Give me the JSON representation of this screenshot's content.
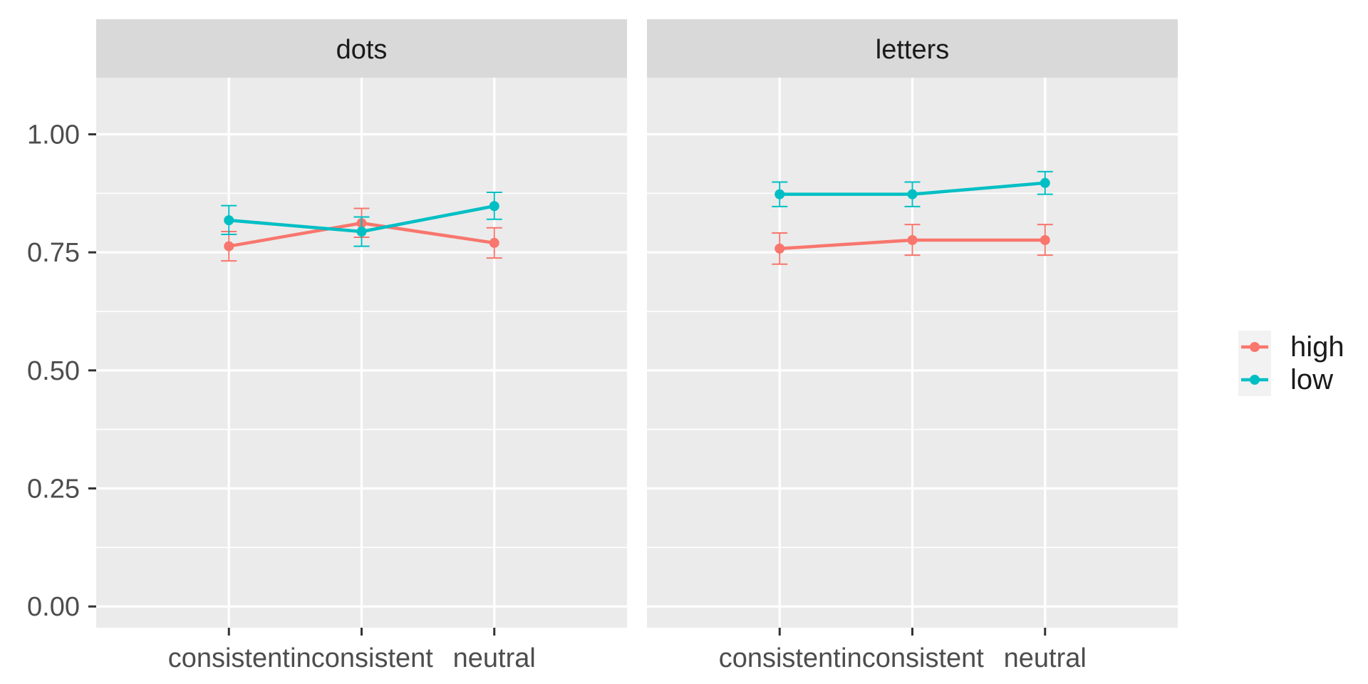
{
  "chart_data": {
    "type": "line",
    "facets": [
      "dots",
      "letters"
    ],
    "categories": [
      "consistent",
      "inconsistent",
      "neutral"
    ],
    "ylim": [
      -0.045,
      1.12
    ],
    "yticks": [
      0.0,
      0.25,
      0.5,
      0.75,
      1.0
    ],
    "ytick_labels": [
      "0.00",
      "0.25",
      "0.50",
      "0.75",
      "1.00"
    ],
    "grid": true,
    "legend_position": "right",
    "series": [
      {
        "name": "high",
        "color": "#F8766D",
        "values": {
          "dots": [
            0.763,
            0.812,
            0.77
          ],
          "letters": [
            0.758,
            0.776,
            0.776
          ]
        },
        "error": {
          "dots": [
            [
              0.732,
              0.794
            ],
            [
              0.782,
              0.843
            ],
            [
              0.738,
              0.802
            ]
          ],
          "letters": [
            [
              0.725,
              0.791
            ],
            [
              0.744,
              0.809
            ],
            [
              0.744,
              0.809
            ]
          ]
        }
      },
      {
        "name": "low",
        "color": "#00BFC4",
        "values": {
          "dots": [
            0.818,
            0.794,
            0.848
          ],
          "letters": [
            0.873,
            0.873,
            0.897
          ]
        },
        "error": {
          "dots": [
            [
              0.788,
              0.849
            ],
            [
              0.763,
              0.825
            ],
            [
              0.82,
              0.877
            ]
          ],
          "letters": [
            [
              0.847,
              0.899
            ],
            [
              0.847,
              0.899
            ],
            [
              0.873,
              0.921
            ]
          ]
        }
      }
    ]
  }
}
